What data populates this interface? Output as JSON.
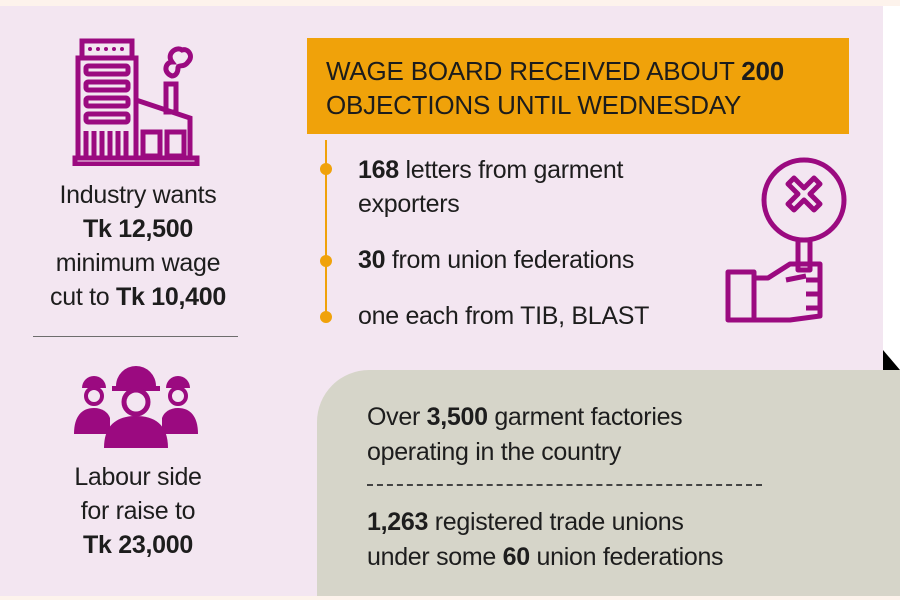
{
  "colors": {
    "accent": "#f0a20a",
    "icon": "#9b0a80",
    "background": "#f3e6f1",
    "panel": "#d6d5c9"
  },
  "industry": {
    "icon": "factory-icon",
    "line1": "Industry wants",
    "line2": "Tk 12,500",
    "line3": "minimum wage",
    "line4_prefix": "cut to ",
    "line4_bold": "Tk 10,400"
  },
  "labour": {
    "icon": "workers-icon",
    "line1": "Labour side",
    "line2": "for raise to",
    "line3": "Tk 23,000"
  },
  "banner": {
    "line1_prefix": "Wage board received about ",
    "line1_bold": "200",
    "line2": "objections until Wednesday"
  },
  "objections": [
    {
      "bold": "168",
      "text": " letters from garment",
      "text2": "exporters"
    },
    {
      "bold": "30",
      "text": " from union federations"
    },
    {
      "bold": "",
      "text": "one each from TIB, BLAST"
    }
  ],
  "objection_icon": "hand-holding-x-sign-icon",
  "facts": {
    "f1_prefix": "Over ",
    "f1_bold": "3,500",
    "f1_suffix": " garment factories",
    "f1_line2": "operating in the country",
    "f2_bold": "1,263",
    "f2_suffix": " registered trade unions",
    "f2_line2_prefix": "under some ",
    "f2_line2_bold": "60",
    "f2_line2_suffix": " union federations"
  }
}
